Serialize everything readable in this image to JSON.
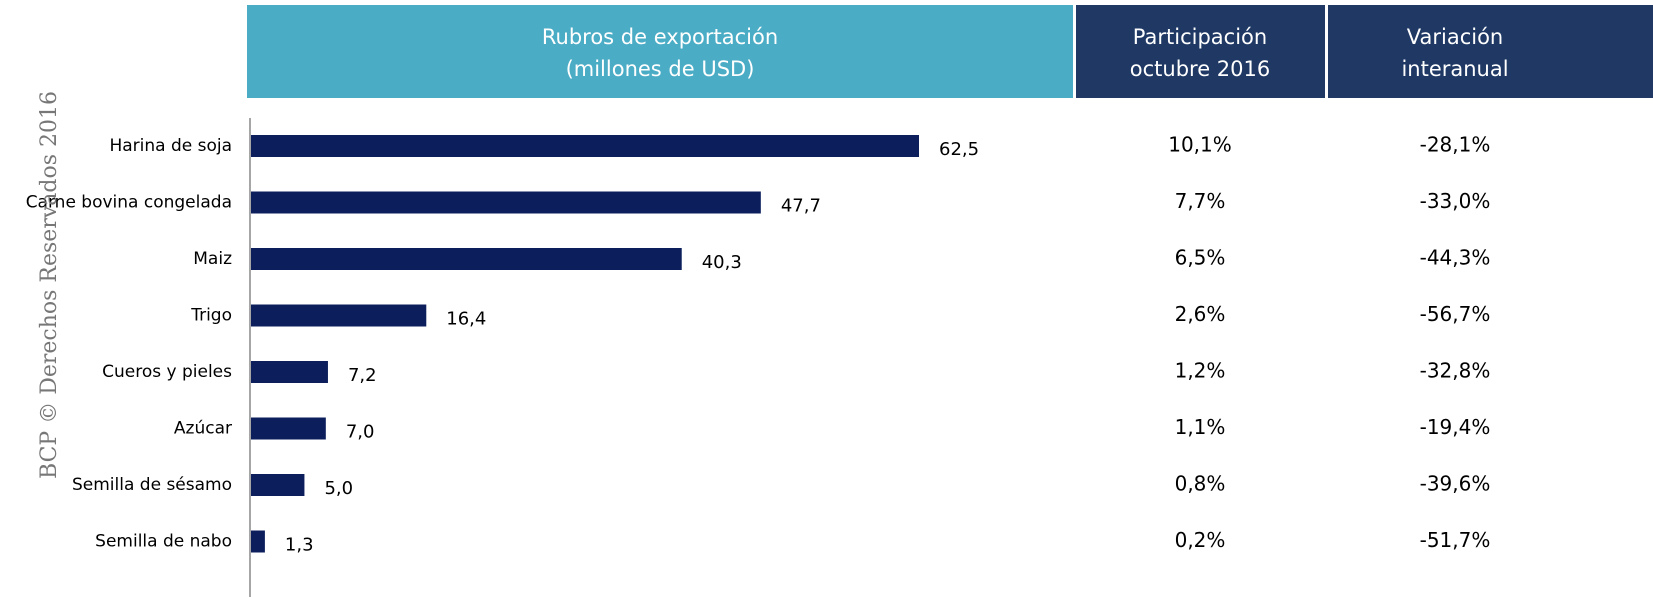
{
  "chart_data": {
    "type": "bar",
    "orientation": "horizontal",
    "title_lines": [
      "Rubros de exportación",
      "(millones de USD)"
    ],
    "categories": [
      "Harina de soja",
      "Carne bovina congelada",
      "Maiz",
      "Trigo",
      "Cueros y pieles",
      "Azúcar",
      "Semilla de sésamo",
      "Semilla de nabo"
    ],
    "values": [
      62.5,
      47.7,
      40.3,
      16.4,
      7.2,
      7.0,
      5.0,
      1.3
    ],
    "value_labels": [
      "62,5",
      "47,7",
      "40,3",
      "16,4",
      "7,2",
      "7,0",
      "5,0",
      "1,3"
    ],
    "color": "#0c1f5c",
    "columns": [
      {
        "header_lines": [
          "Participación",
          "octubre 2016"
        ],
        "cells": [
          "10,1%",
          "7,7%",
          "6,5%",
          "2,6%",
          "1,2%",
          "1,1%",
          "0,8%",
          "0,2%"
        ]
      },
      {
        "header_lines": [
          "Variación",
          "interanual"
        ],
        "cells": [
          "-28,1%",
          "-33,0%",
          "-44,3%",
          "-56,7%",
          "-32,8%",
          "-19,4%",
          "-39,6%",
          "-51,7%"
        ]
      }
    ]
  },
  "watermark": "BCP © Derechos Reservados 2016"
}
